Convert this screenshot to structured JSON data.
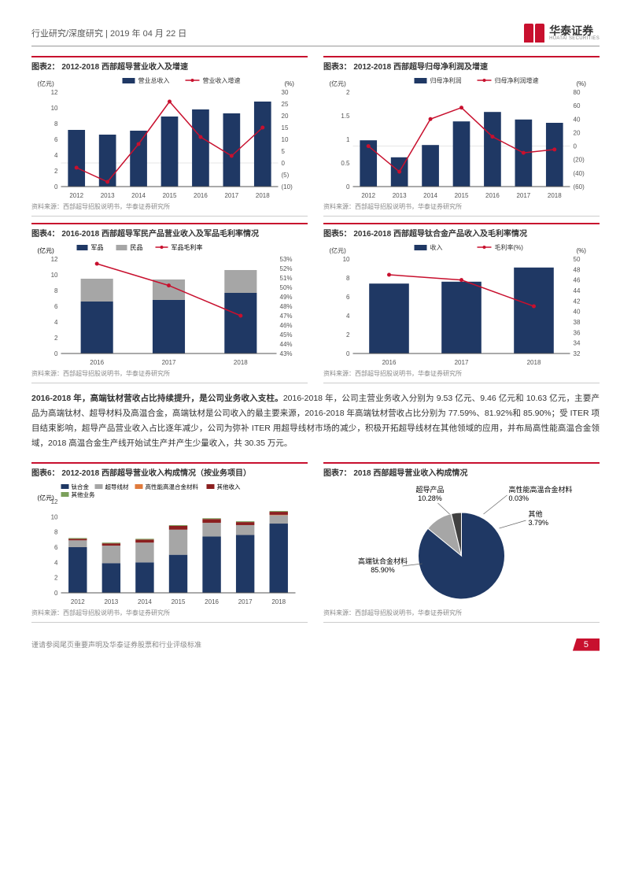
{
  "header": {
    "left": "行业研究/深度研究 | 2019 年 04 月 22 日",
    "logo_cn": "华泰证券",
    "logo_en": "HUATAI SECURITIES"
  },
  "colors": {
    "navy": "#1f3864",
    "red": "#c8102e",
    "grey": "#a6a6a6",
    "lightgrey": "#d0d0d0",
    "axis": "#808080",
    "maroon": "#8b2020",
    "orange": "#e07b3c",
    "green": "#7ba05b"
  },
  "chart2": {
    "title": "图表2：  2012-2018 西部超导营业收入及增速",
    "ylabel_l": "(亿元)",
    "ylabel_r": "(%)",
    "leg_bar": "营业总收入",
    "leg_line": "营业收入增速",
    "categories": [
      "2012",
      "2013",
      "2014",
      "2015",
      "2016",
      "2017",
      "2018"
    ],
    "bars": [
      7.2,
      6.6,
      7.1,
      8.9,
      9.8,
      9.3,
      10.8
    ],
    "line": [
      -2,
      -8,
      8,
      26,
      11,
      3,
      15
    ],
    "yl": [
      0,
      2,
      4,
      6,
      8,
      10,
      12
    ],
    "yr": [
      -10,
      -5,
      0,
      5,
      10,
      15,
      20,
      25,
      30
    ],
    "bar_color": "#1f3864",
    "line_color": "#c8102e",
    "source": "资料来源：西部超导招股说明书，华泰证券研究所"
  },
  "chart3": {
    "title": "图表3：  2012-2018 西部超导归母净利润及增速",
    "ylabel_l": "(亿元)",
    "ylabel_r": "(%)",
    "leg_bar": "归母净利润",
    "leg_line": "归母净利润增速",
    "categories": [
      "2012",
      "2013",
      "2014",
      "2015",
      "2016",
      "2017",
      "2018"
    ],
    "bars": [
      0.98,
      0.62,
      0.88,
      1.38,
      1.58,
      1.42,
      1.35
    ],
    "line": [
      0,
      -38,
      40,
      57,
      14,
      -10,
      -5
    ],
    "yl": [
      0,
      0.5,
      1.0,
      1.5,
      2.0
    ],
    "yr": [
      -60,
      -40,
      -20,
      0,
      20,
      40,
      60,
      80
    ],
    "bar_color": "#1f3864",
    "line_color": "#c8102e",
    "source": "资料来源：西部超导招股说明书，华泰证券研究所"
  },
  "chart4": {
    "title": "图表4：  2016-2018 西部超导军民产品营业收入及军品毛利率情况",
    "ylabel_l": "(亿元)",
    "ylabel_r": "",
    "leg": [
      "军品",
      "民品",
      "军品毛利率"
    ],
    "categories": [
      "2016",
      "2017",
      "2018"
    ],
    "stack_a": [
      6.6,
      6.8,
      7.7
    ],
    "stack_b": [
      2.9,
      2.6,
      2.9
    ],
    "line": [
      52.5,
      50.2,
      47.0
    ],
    "yl": [
      0,
      2,
      4,
      6,
      8,
      10,
      12
    ],
    "yr": [
      "43%",
      "44%",
      "45%",
      "46%",
      "47%",
      "48%",
      "49%",
      "50%",
      "51%",
      "52%",
      "53%"
    ],
    "yr_min": 43,
    "yr_max": 53,
    "col_a": "#1f3864",
    "col_b": "#a6a6a6",
    "line_color": "#c8102e",
    "source": "资料来源：西部超导招股说明书，华泰证券研究所"
  },
  "chart5": {
    "title": "图表5：  2016-2018 西部超导钛合金产品收入及毛利率情况",
    "ylabel_l": "(亿元)",
    "ylabel_r": "(%)",
    "leg_bar": "收入",
    "leg_line": "毛利率(%)",
    "categories": [
      "2016",
      "2017",
      "2018"
    ],
    "bars": [
      7.4,
      7.6,
      9.1
    ],
    "line": [
      47,
      46,
      41
    ],
    "yl": [
      0,
      2,
      4,
      6,
      8,
      10
    ],
    "yr": [
      32,
      34,
      36,
      38,
      40,
      42,
      44,
      46,
      48,
      50
    ],
    "yr_min": 32,
    "yr_max": 50,
    "bar_color": "#1f3864",
    "line_color": "#c8102e",
    "source": "资料来源：西部超导招股说明书，华泰证券研究所"
  },
  "body": "<b>2016-2018 年，高端钛材营收占比持续提升，是公司业务收入支柱。</b>2016-2018 年，公司主营业务收入分别为 9.53 亿元、9.46 亿元和 10.63 亿元，主要产品为高端钛材、超导材料及高温合金，高端钛材是公司收入的最主要来源，2016-2018 年高端钛材营收占比分别为 77.59%、81.92%和 85.90%；受 ITER 项目结束影响，超导产品营业收入占比逐年减少，公司为弥补 ITER 用超导线材市场的减少，积极开拓超导线材在其他领域的应用，并布局高性能高温合金领域，2018 高温合金生产线开始试生产并产生少量收入，共 30.35 万元。",
  "chart6": {
    "title": "图表6：  2012-2018 西部超导营业收入构成情况（按业务项目）",
    "ylabel_l": "(亿元)",
    "leg": [
      "钛合金",
      "超导线材",
      "高性能高温合金材料",
      "其他收入",
      "其他业务"
    ],
    "categories": [
      "2012",
      "2013",
      "2014",
      "2015",
      "2016",
      "2017",
      "2018"
    ],
    "series": [
      [
        6.0,
        3.9,
        4.0,
        5.0,
        7.4,
        7.6,
        9.1
      ],
      [
        0.9,
        2.3,
        2.6,
        3.3,
        1.8,
        1.3,
        1.1
      ],
      [
        0,
        0,
        0,
        0,
        0,
        0,
        0.05
      ],
      [
        0.2,
        0.3,
        0.4,
        0.5,
        0.5,
        0.4,
        0.4
      ],
      [
        0.1,
        0.1,
        0.1,
        0.1,
        0.1,
        0.1,
        0.1
      ]
    ],
    "colors": [
      "#1f3864",
      "#a6a6a6",
      "#e07b3c",
      "#8b2020",
      "#7ba05b"
    ],
    "yl": [
      0,
      2,
      4,
      6,
      8,
      10,
      12
    ],
    "source": "资料来源：西部超导招股说明书，华泰证券研究所"
  },
  "chart7": {
    "title": "图表7：  2018 西部超导营业收入构成情况",
    "slices": [
      {
        "label": "高端钛合金材料",
        "sub": "85.90%",
        "value": 85.9,
        "color": "#1f3864"
      },
      {
        "label": "超导产品",
        "sub": "10.28%",
        "value": 10.28,
        "color": "#a6a6a6"
      },
      {
        "label": "高性能高温合金材料",
        "sub": "0.03%",
        "value": 0.03,
        "color": "#595959"
      },
      {
        "label": "其他",
        "sub": "3.79%",
        "value": 3.79,
        "color": "#404040"
      }
    ],
    "source": "资料来源：西部超导招股说明书，华泰证券研究所"
  },
  "footer": {
    "disclaimer": "谨请参阅尾页重要声明及华泰证券股票和行业评级标准",
    "page": "5"
  }
}
